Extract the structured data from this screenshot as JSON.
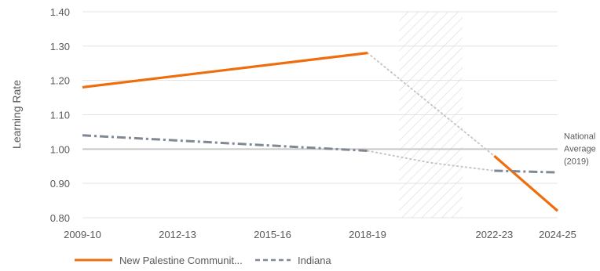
{
  "chart_data": {
    "type": "line",
    "title": "",
    "xlabel": "",
    "ylabel": "Learning Rate",
    "x_ticks": [
      "2009-10",
      "2012-13",
      "2015-16",
      "2018-19",
      "2022-23",
      "2024-25"
    ],
    "x_tick_years": [
      2009,
      2012,
      2015,
      2018,
      2022,
      2024
    ],
    "xlim": [
      2009,
      2024
    ],
    "ylim": [
      0.8,
      1.4
    ],
    "y_ticks": [
      "0.80",
      "0.90",
      "1.00",
      "1.10",
      "1.20",
      "1.30",
      "1.40"
    ],
    "y_tick_values": [
      0.8,
      0.9,
      1.0,
      1.1,
      1.2,
      1.3,
      1.4
    ],
    "grid": "horizontal",
    "legend_position": "bottom-left",
    "reference_line": {
      "value": 1.0,
      "label_lines": [
        "National",
        "Average",
        "(2019)"
      ],
      "color": "#c8c8c8"
    },
    "shaded_region": {
      "x_start": 2019,
      "x_end": 2021,
      "pattern": "diagonal-hatch"
    },
    "series": [
      {
        "name": "New Palestine Communit...",
        "color": "#ee6d0c",
        "style": "solid",
        "segments": [
          [
            {
              "x": 2009,
              "y": 1.18
            },
            {
              "x": 2018,
              "y": 1.28
            }
          ],
          [
            {
              "x": 2022,
              "y": 0.98
            },
            {
              "x": 2024,
              "y": 0.82
            }
          ]
        ],
        "gap_connector": [
          {
            "x": 2018,
            "y": 1.28
          },
          {
            "x": 2022,
            "y": 0.98
          }
        ]
      },
      {
        "name": "Indiana",
        "color": "#7f8894",
        "style": "dashed",
        "segments": [
          [
            {
              "x": 2009,
              "y": 1.04
            },
            {
              "x": 2018,
              "y": 0.995
            }
          ],
          [
            {
              "x": 2022,
              "y": 0.937
            },
            {
              "x": 2024,
              "y": 0.932
            }
          ]
        ],
        "gap_connector": [
          {
            "x": 2018,
            "y": 0.995
          },
          {
            "x": 2020,
            "y": 0.96
          },
          {
            "x": 2022,
            "y": 0.937
          }
        ]
      }
    ],
    "colors": {
      "grid": "#e3e3e3",
      "axis_text": "#595959",
      "hatch": "#d9d9d9",
      "connector": "#c8c8c8"
    }
  }
}
